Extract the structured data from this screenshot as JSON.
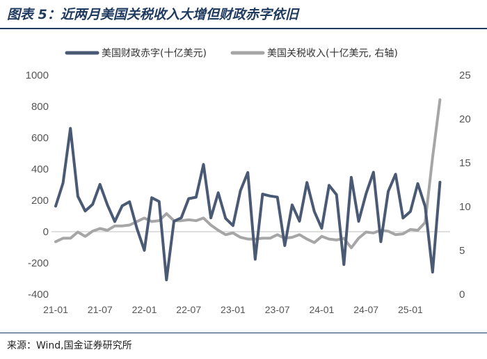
{
  "title": "图表 5：近两月美国关税收入大增但财政赤字依旧",
  "source": "来源：Wind,国金证券研究所",
  "colors": {
    "deficit": "#4a5a75",
    "tariff": "#a6a6a6",
    "title": "#1f3a5f"
  },
  "chart_data": {
    "type": "line",
    "legend": [
      "美国财政赤字(十亿美元)",
      "美国关税收入(十亿美元, 右轴)"
    ],
    "x_tick_labels": [
      "21-01",
      "21-07",
      "22-01",
      "22-07",
      "23-01",
      "23-07",
      "24-01",
      "24-07",
      "25-01"
    ],
    "x": [
      "21-01",
      "21-02",
      "21-03",
      "21-04",
      "21-05",
      "21-06",
      "21-07",
      "21-08",
      "21-09",
      "21-10",
      "21-11",
      "21-12",
      "22-01",
      "22-02",
      "22-03",
      "22-04",
      "22-05",
      "22-06",
      "22-07",
      "22-08",
      "22-09",
      "22-10",
      "22-11",
      "22-12",
      "23-01",
      "23-02",
      "23-03",
      "23-04",
      "23-05",
      "23-06",
      "23-07",
      "23-08",
      "23-09",
      "23-10",
      "23-11",
      "23-12",
      "24-01",
      "24-02",
      "24-03",
      "24-04",
      "24-05",
      "24-06",
      "24-07",
      "24-08",
      "24-09",
      "24-10",
      "24-11",
      "24-12",
      "25-01",
      "25-02",
      "25-03",
      "25-04",
      "25-05",
      "25-06"
    ],
    "y_left_ticks": [
      "1000",
      "800",
      "600",
      "400",
      "200",
      "0",
      "-200",
      "-400"
    ],
    "y_right_ticks": [
      "25",
      "20",
      "15",
      "10",
      "5",
      "0"
    ],
    "ylim_left": [
      -400,
      1000
    ],
    "ylim_right": [
      0,
      25
    ],
    "series": [
      {
        "name": "美国财政赤字(十亿美元)",
        "axis": "left",
        "values": [
          163,
          311,
          660,
          226,
          132,
          174,
          302,
          171,
          65,
          165,
          191,
          21,
          -119,
          217,
          193,
          -308,
          66,
          89,
          211,
          220,
          430,
          88,
          249,
          85,
          39,
          262,
          378,
          -176,
          240,
          228,
          221,
          -89,
          171,
          67,
          314,
          129,
          22,
          296,
          236,
          -210,
          347,
          66,
          243,
          380,
          -64,
          257,
          367,
          87,
          129,
          307,
          161,
          -258,
          316,
          null
        ],
        "color": "#4a5a75"
      },
      {
        "name": "美国关税收入(十亿美元, 右轴)",
        "axis": "right",
        "values": [
          6.0,
          6.4,
          6.4,
          7.1,
          6.6,
          7.2,
          7.5,
          7.3,
          7.8,
          7.8,
          7.9,
          8.3,
          8.7,
          8.3,
          8.4,
          9.2,
          8.4,
          8.4,
          8.5,
          8.4,
          8.7,
          7.9,
          7.3,
          6.8,
          7.0,
          6.5,
          6.3,
          6.3,
          6.4,
          6.4,
          6.8,
          6.4,
          6.5,
          6.8,
          6.3,
          5.9,
          6.6,
          6.3,
          6.2,
          6.4,
          5.3,
          6.4,
          7.1,
          7.0,
          7.3,
          7.2,
          6.8,
          6.9,
          7.4,
          7.3,
          8.2,
          15.6,
          22.2,
          null
        ],
        "color": "#a6a6a6"
      }
    ],
    "grid": false,
    "legend_position": "top"
  }
}
